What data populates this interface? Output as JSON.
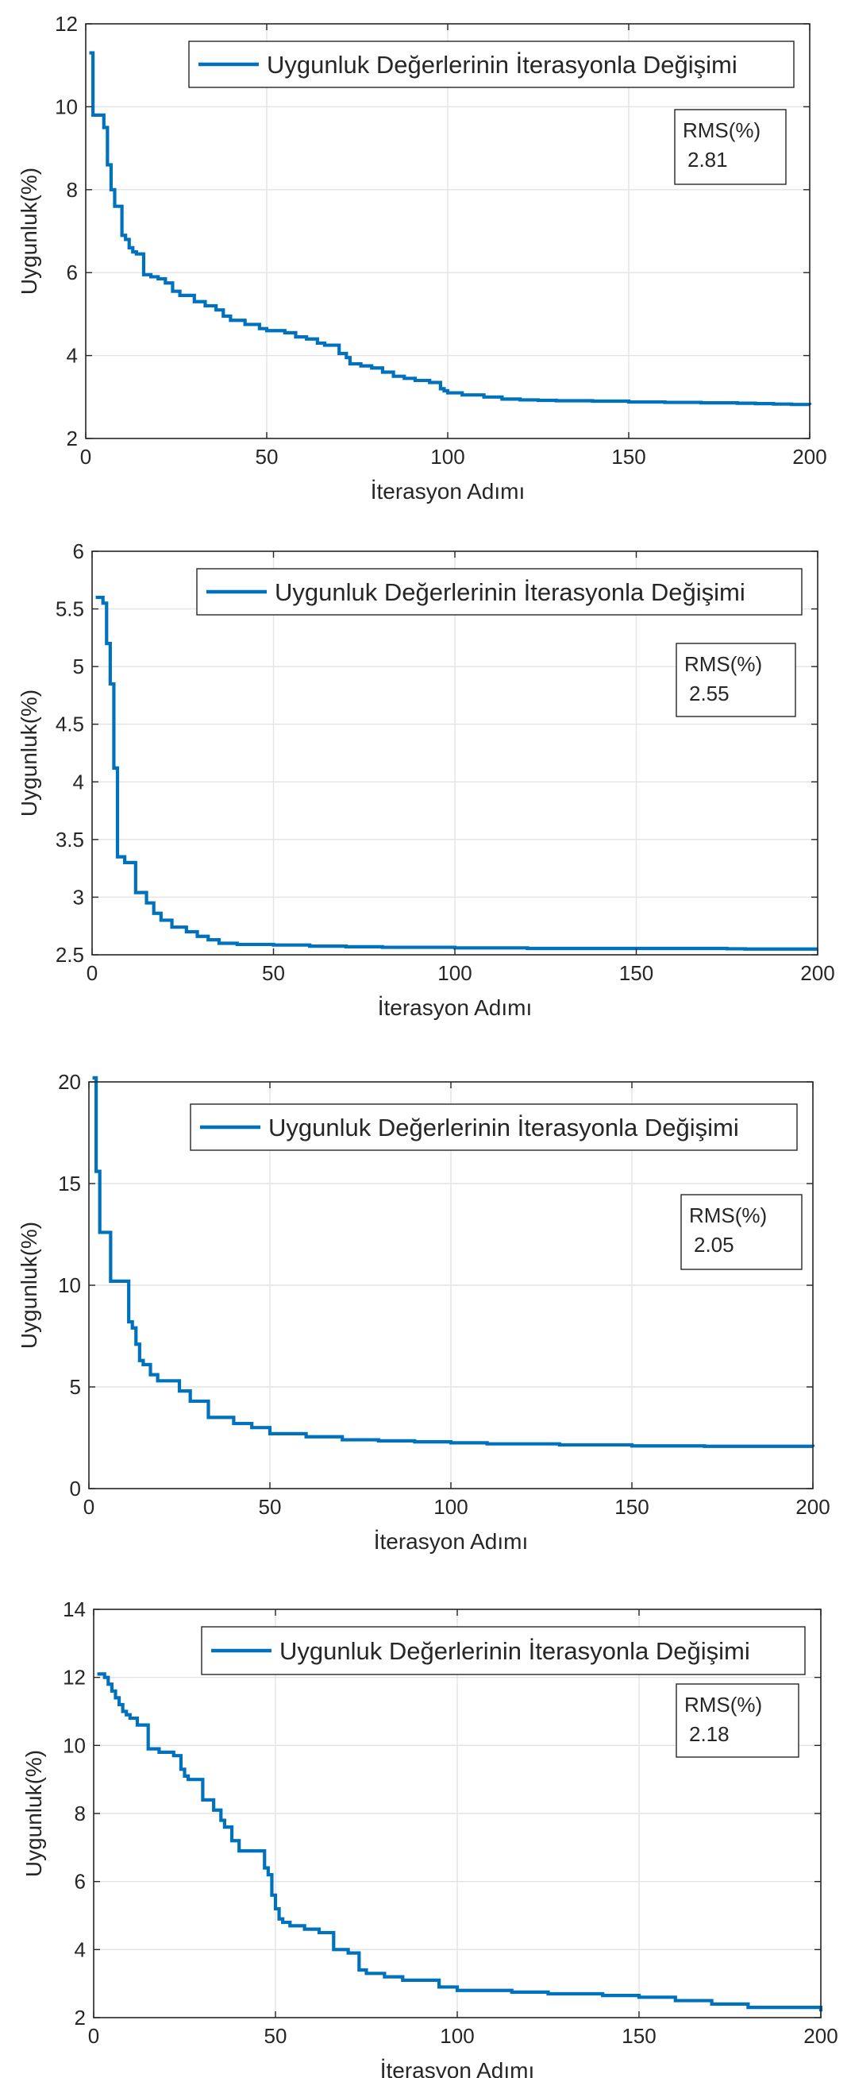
{
  "chart_data": [
    {
      "type": "line",
      "xlabel": "İterasyon Adımı",
      "ylabel": "Uygunluk(%)",
      "xlim": [
        0,
        200
      ],
      "ylim": [
        2,
        12
      ],
      "x_ticks": [
        0,
        50,
        100,
        150,
        200
      ],
      "y_ticks": [
        2,
        4,
        6,
        8,
        10,
        12
      ],
      "x_tick_labels": [
        "0",
        "50",
        "100",
        "150",
        "200"
      ],
      "y_tick_labels": [
        "2",
        "4",
        "6",
        "8",
        "10",
        "12"
      ],
      "grid": true,
      "legend_position": "top-right",
      "color": "#0072BD",
      "annotation": {
        "title": "RMS(%)",
        "value": "2.81"
      },
      "series": [
        {
          "name": "Uygunluk Değerlerinin İterasyonla Değişimi",
          "step": true,
          "x": [
            1,
            2,
            5,
            6,
            7,
            8,
            9,
            10,
            11,
            12,
            13,
            14,
            16,
            17,
            18,
            20,
            22,
            24,
            26,
            28,
            30,
            33,
            36,
            38,
            40,
            44,
            48,
            50,
            55,
            58,
            61,
            64,
            66,
            70,
            72,
            73,
            76,
            79,
            82,
            85,
            88,
            91,
            95,
            98,
            99,
            100,
            104,
            110,
            115,
            120,
            125,
            130,
            140,
            150,
            160,
            170,
            180,
            185,
            190,
            195,
            200
          ],
          "values": [
            11.3,
            9.8,
            9.5,
            8.6,
            8.0,
            7.6,
            7.6,
            6.9,
            6.8,
            6.6,
            6.5,
            6.45,
            5.95,
            5.95,
            5.9,
            5.85,
            5.75,
            5.55,
            5.45,
            5.45,
            5.3,
            5.2,
            5.1,
            4.95,
            4.85,
            4.75,
            4.65,
            4.6,
            4.55,
            4.45,
            4.4,
            4.3,
            4.25,
            4.05,
            3.95,
            3.8,
            3.75,
            3.7,
            3.6,
            3.5,
            3.45,
            3.4,
            3.35,
            3.2,
            3.15,
            3.1,
            3.05,
            3.0,
            2.95,
            2.93,
            2.92,
            2.91,
            2.9,
            2.88,
            2.87,
            2.86,
            2.85,
            2.84,
            2.83,
            2.82,
            2.81
          ]
        }
      ]
    },
    {
      "type": "line",
      "xlabel": "İterasyon Adımı",
      "ylabel": "Uygunluk(%)",
      "xlim": [
        0,
        200
      ],
      "ylim": [
        2.5,
        6
      ],
      "x_ticks": [
        0,
        50,
        100,
        150,
        200
      ],
      "y_ticks": [
        2.5,
        3,
        3.5,
        4,
        4.5,
        5,
        5.5,
        6
      ],
      "x_tick_labels": [
        "0",
        "50",
        "100",
        "150",
        "200"
      ],
      "y_tick_labels": [
        "2.5",
        "3",
        "3.5",
        "4",
        "4.5",
        "5",
        "5.5",
        "6"
      ],
      "grid": true,
      "legend_position": "top-right",
      "color": "#0072BD",
      "annotation": {
        "title": "RMS(%)",
        "value": "2.55"
      },
      "series": [
        {
          "name": "Uygunluk Değerlerinin İterasyonla Değişimi",
          "step": true,
          "x": [
            1,
            3,
            4,
            5,
            6,
            7,
            9,
            12,
            15,
            17,
            19,
            22,
            26,
            29,
            32,
            35,
            40,
            50,
            60,
            70,
            80,
            100,
            120,
            150,
            175,
            180,
            200
          ],
          "values": [
            5.6,
            5.55,
            5.2,
            4.85,
            4.12,
            3.35,
            3.3,
            3.04,
            2.95,
            2.86,
            2.8,
            2.74,
            2.7,
            2.66,
            2.63,
            2.6,
            2.59,
            2.585,
            2.575,
            2.57,
            2.565,
            2.56,
            2.555,
            2.555,
            2.552,
            2.55,
            2.55
          ]
        }
      ]
    },
    {
      "type": "line",
      "xlabel": "İterasyon Adımı",
      "ylabel": "Uygunluk(%)",
      "xlim": [
        0,
        200
      ],
      "ylim": [
        0,
        20
      ],
      "x_ticks": [
        0,
        50,
        100,
        150,
        200
      ],
      "y_ticks": [
        0,
        5,
        10,
        15,
        20
      ],
      "x_tick_labels": [
        "0",
        "50",
        "100",
        "150",
        "200"
      ],
      "y_tick_labels": [
        "0",
        "5",
        "10",
        "15",
        "20"
      ],
      "grid": true,
      "legend_position": "top-right",
      "color": "#0072BD",
      "annotation": {
        "title": "RMS(%)",
        "value": "2.05"
      },
      "series": [
        {
          "name": "Uygunluk Değerlerinin İterasyonla Değişimi",
          "step": true,
          "x": [
            1,
            2,
            3,
            6,
            11,
            12,
            13,
            14,
            15,
            17,
            19,
            21,
            25,
            28,
            33,
            38,
            40,
            45,
            50,
            60,
            70,
            80,
            90,
            100,
            110,
            130,
            150,
            170,
            200
          ],
          "values": [
            20.2,
            15.6,
            12.6,
            10.2,
            8.2,
            7.9,
            7.1,
            6.3,
            6.1,
            5.6,
            5.3,
            5.3,
            4.8,
            4.3,
            3.5,
            3.5,
            3.2,
            3.0,
            2.7,
            2.55,
            2.4,
            2.35,
            2.3,
            2.25,
            2.2,
            2.15,
            2.1,
            2.08,
            2.05
          ]
        }
      ]
    },
    {
      "type": "line",
      "xlabel": "İterasyon Adımı",
      "ylabel": "Uygunluk(%)",
      "xlim": [
        0,
        200
      ],
      "ylim": [
        2,
        14
      ],
      "x_ticks": [
        0,
        50,
        100,
        150,
        200
      ],
      "y_ticks": [
        2,
        4,
        6,
        8,
        10,
        12,
        14
      ],
      "x_tick_labels": [
        "0",
        "50",
        "100",
        "150",
        "200"
      ],
      "y_tick_labels": [
        "2",
        "4",
        "6",
        "8",
        "10",
        "12",
        "14"
      ],
      "grid": true,
      "legend_position": "top-right",
      "color": "#0072BD",
      "annotation": {
        "title": "RMS(%)",
        "value": "2.18"
      },
      "series": [
        {
          "name": "Uygunluk Değerlerinin İterasyonla Değişimi",
          "step": true,
          "x": [
            1,
            3,
            4,
            5,
            6,
            7,
            8,
            9,
            10,
            12,
            15,
            18,
            22,
            24,
            25,
            26,
            30,
            33,
            35,
            36,
            38,
            40,
            47,
            48,
            49,
            50,
            51,
            52,
            54,
            58,
            62,
            66,
            70,
            73,
            75,
            80,
            85,
            95,
            100,
            115,
            125,
            140,
            150,
            160,
            170,
            180,
            200
          ],
          "values": [
            12.1,
            12.0,
            11.8,
            11.6,
            11.4,
            11.2,
            11.0,
            10.9,
            10.8,
            10.6,
            9.9,
            9.8,
            9.7,
            9.3,
            9.1,
            9.0,
            8.4,
            8.1,
            7.8,
            7.6,
            7.2,
            6.9,
            6.4,
            6.2,
            5.6,
            5.2,
            4.9,
            4.8,
            4.7,
            4.6,
            4.5,
            4.0,
            3.9,
            3.4,
            3.3,
            3.2,
            3.1,
            2.9,
            2.8,
            2.75,
            2.7,
            2.65,
            2.6,
            2.5,
            2.4,
            2.3,
            2.18
          ]
        }
      ]
    }
  ]
}
